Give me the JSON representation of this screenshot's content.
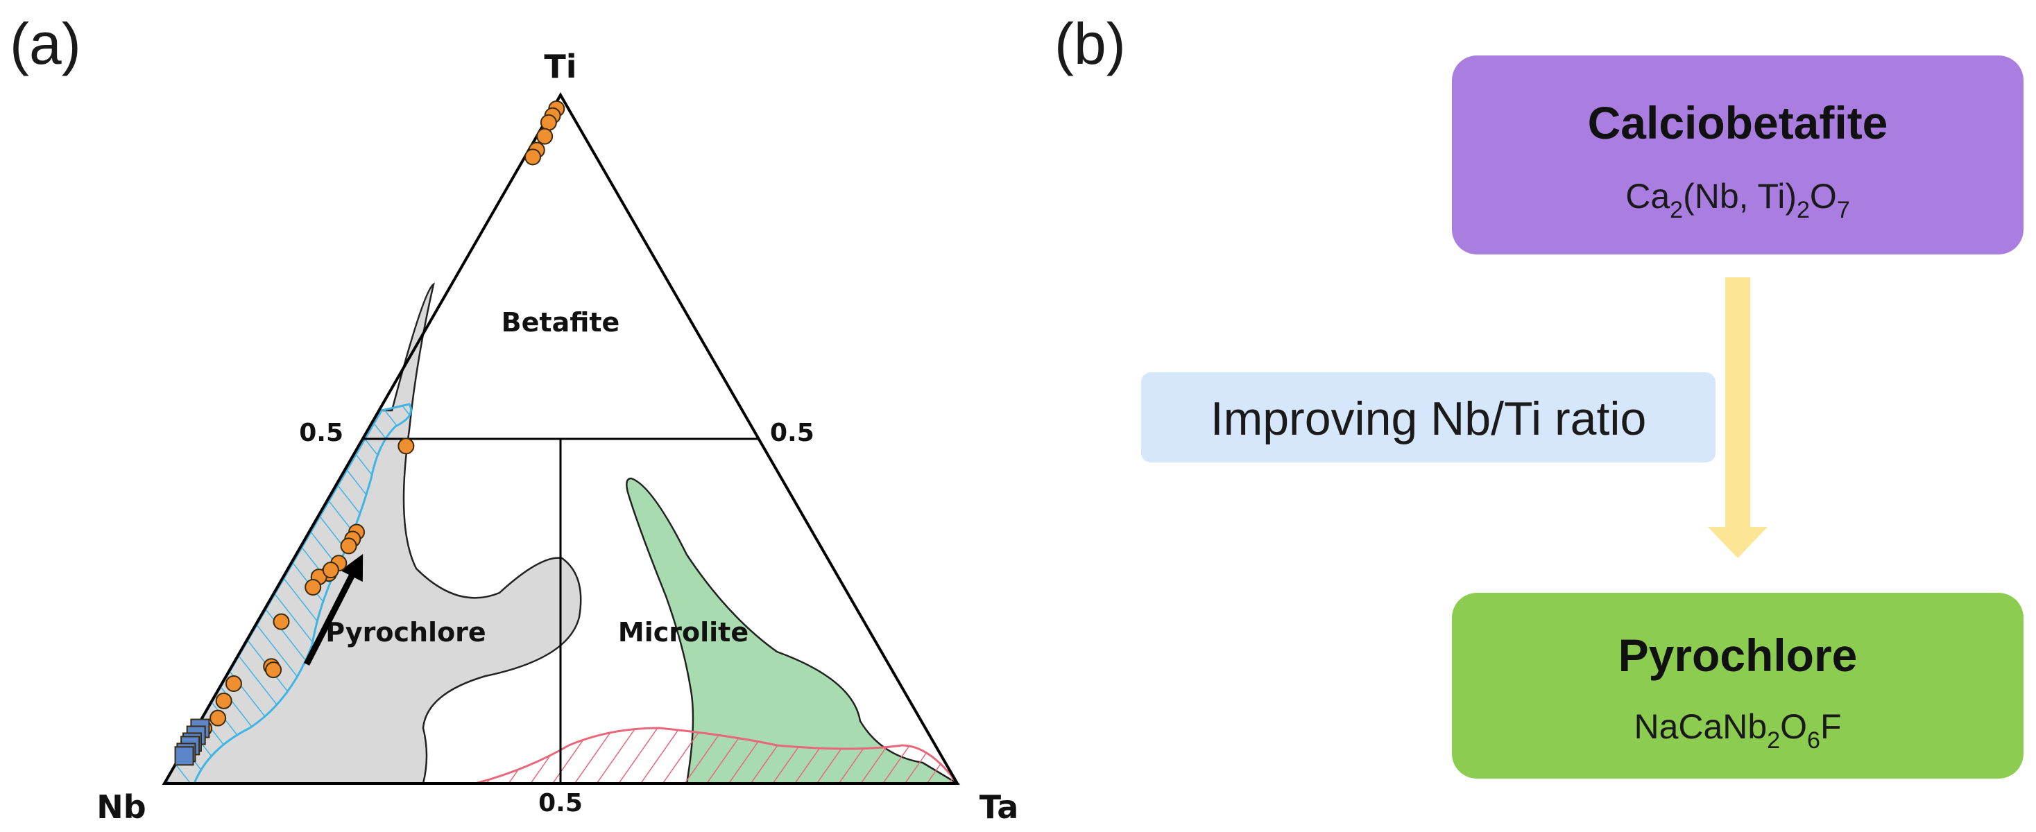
{
  "panel_a": {
    "label": "(a)",
    "vertices": {
      "top": "Ti",
      "left": "Nb",
      "right": "Ta"
    },
    "ticks": {
      "left_edge": "0.5",
      "right_edge": "0.5",
      "base": "0.5"
    },
    "fields": {
      "betafite": "Betafite",
      "pyrochlore": "Pyrochlore",
      "microlite": "Microlite"
    },
    "colors": {
      "pyrochlore_fill": "#d9d9d9",
      "microlite_fill": "#a8dcb0",
      "blue_hatch": "#3fb4e5",
      "red_hatch": "#e8677a",
      "circle_fill": "#ef8f2f",
      "square_fill": "#5b86c9"
    }
  },
  "panel_b": {
    "label": "(b)",
    "top_box": {
      "title": "Calciobetafite",
      "formula": {
        "p1": "Ca",
        "s1": "2",
        "p2": "(Nb, Ti)",
        "s2": "2",
        "p3": "O",
        "s3": "7"
      },
      "color": "#a97ee0"
    },
    "ratio_label": {
      "text": "Improving Nb/Ti ratio",
      "color": "#d6e7fb"
    },
    "arrow_color": "#fde596",
    "bottom_box": {
      "title": "Pyrochlore",
      "formula": {
        "p1": "NaCaNb",
        "s1": "2",
        "p2": "O",
        "s2": "6",
        "p3": "F"
      },
      "color": "#8ccc51"
    }
  },
  "chart_data": {
    "type": "scatter",
    "ternary_axes": [
      "Ti",
      "Nb",
      "Ta"
    ],
    "series": [
      {
        "marker": "circle",
        "points": [
          {
            "Ti": 0.98,
            "Nb": 0.015,
            "Ta": 0.005
          },
          {
            "Ti": 0.97,
            "Nb": 0.025,
            "Ta": 0.005
          },
          {
            "Ti": 0.96,
            "Nb": 0.035,
            "Ta": 0.005
          },
          {
            "Ti": 0.94,
            "Nb": 0.05,
            "Ta": 0.01
          },
          {
            "Ti": 0.92,
            "Nb": 0.07,
            "Ta": 0.01
          },
          {
            "Ti": 0.91,
            "Nb": 0.08,
            "Ta": 0.01
          },
          {
            "Ti": 0.49,
            "Nb": 0.45,
            "Ta": 0.06
          },
          {
            "Ti": 0.365,
            "Nb": 0.575,
            "Ta": 0.06
          },
          {
            "Ti": 0.355,
            "Nb": 0.585,
            "Ta": 0.06
          },
          {
            "Ti": 0.345,
            "Nb": 0.595,
            "Ta": 0.06
          },
          {
            "Ti": 0.32,
            "Nb": 0.62,
            "Ta": 0.06
          },
          {
            "Ti": 0.305,
            "Nb": 0.64,
            "Ta": 0.055
          },
          {
            "Ti": 0.3,
            "Nb": 0.655,
            "Ta": 0.045
          },
          {
            "Ti": 0.31,
            "Nb": 0.635,
            "Ta": 0.055
          },
          {
            "Ti": 0.285,
            "Nb": 0.67,
            "Ta": 0.045
          },
          {
            "Ti": 0.235,
            "Nb": 0.735,
            "Ta": 0.03
          },
          {
            "Ti": 0.17,
            "Nb": 0.78,
            "Ta": 0.05
          },
          {
            "Ti": 0.165,
            "Nb": 0.78,
            "Ta": 0.055
          },
          {
            "Ti": 0.145,
            "Nb": 0.84,
            "Ta": 0.015
          },
          {
            "Ti": 0.12,
            "Nb": 0.865,
            "Ta": 0.015
          },
          {
            "Ti": 0.095,
            "Nb": 0.885,
            "Ta": 0.02
          },
          {
            "Ti": 0.08,
            "Nb": 0.91,
            "Ta": 0.01
          }
        ]
      },
      {
        "marker": "square",
        "points": [
          {
            "Ti": 0.08,
            "Nb": 0.915,
            "Ta": 0.005
          },
          {
            "Ti": 0.07,
            "Nb": 0.925,
            "Ta": 0.005
          },
          {
            "Ti": 0.06,
            "Nb": 0.935,
            "Ta": 0.005
          },
          {
            "Ti": 0.055,
            "Nb": 0.94,
            "Ta": 0.005
          },
          {
            "Ti": 0.045,
            "Nb": 0.95,
            "Ta": 0.005
          },
          {
            "Ti": 0.04,
            "Nb": 0.955,
            "Ta": 0.005
          }
        ]
      }
    ]
  }
}
